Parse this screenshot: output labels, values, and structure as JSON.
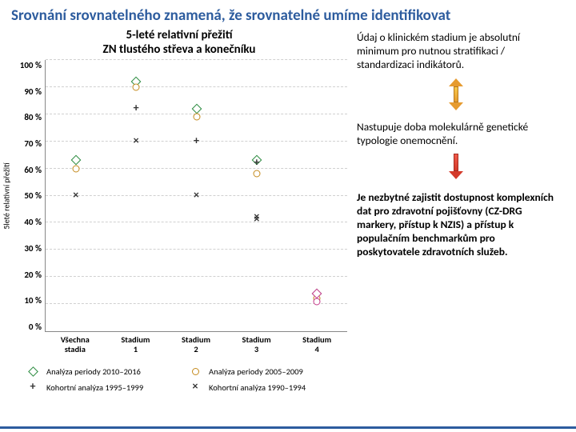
{
  "title_color": "#2d5c9e",
  "slide_title": "Srovnání srovnatelného znamená, že srovnatelné umíme identifikovat",
  "chart": {
    "title_line1": "5-leté relativní přežití",
    "title_line2": "ZN tlustého střeva a konečníku",
    "y_label": "5leté relativní přežití",
    "y_ticks": [
      "100 %",
      "90 %",
      "80 %",
      "70 %",
      "60 %",
      "50 %",
      "40 %",
      "30 %",
      "20 %",
      "10 %",
      "0 %"
    ],
    "y_min": 0,
    "y_max": 100,
    "x_categories": [
      {
        "l1": "Všechna",
        "l2": "stadia"
      },
      {
        "l1": "Stadium",
        "l2": "1"
      },
      {
        "l1": "Stadium",
        "l2": "2"
      },
      {
        "l1": "Stadium",
        "l2": "3"
      },
      {
        "l1": "Stadium",
        "l2": "4"
      }
    ],
    "series": [
      {
        "label": "Analýza periody 2010–2016",
        "marker": "diamond",
        "color": "#2a8a3e",
        "values": [
          63,
          92,
          82,
          63,
          14
        ]
      },
      {
        "label": "Analýza periody 2005–2009",
        "marker": "circle",
        "color": "#c48a1d",
        "values": [
          60,
          90,
          79,
          58,
          12
        ]
      },
      {
        "label": "Kohortní analýza 1995–1999",
        "marker": "plus",
        "color": "#333333",
        "values": null
      },
      {
        "label": "Kohortní analýza 1990–1994",
        "marker": "x",
        "color": "#333333",
        "values": null
      }
    ],
    "extra_series": [
      {
        "marker": "plus",
        "color": "#333333",
        "values": [
          null,
          82,
          70,
          62,
          null
        ]
      },
      {
        "marker": "x",
        "color": "#333333",
        "values": [
          50,
          70,
          50,
          41,
          null
        ]
      },
      {
        "marker": "x",
        "color": "#333333",
        "values": [
          null,
          null,
          null,
          42,
          null
        ]
      },
      {
        "marker": "diamond",
        "color": "#c43a8a",
        "values": [
          null,
          null,
          null,
          null,
          14
        ]
      },
      {
        "marker": "circle",
        "color": "#c43a8a",
        "values": [
          null,
          null,
          null,
          null,
          11
        ]
      }
    ],
    "grid_color": "#d0d0d0"
  },
  "right": {
    "p1": "Údaj o klinickém stadium je absolutní minimum pro nutnou stratifikaci / standardizaci indikátorů.",
    "p2": "Nastupuje doba molekulárně genetické typologie onemocnění.",
    "p3": "Je nezbytné zajistit dostupnost komplexních dat pro zdravotní pojišťovny (CZ-DRG markery, přístup k NZIS) a přístup k populačním benchmarkům pro poskytovatele zdravotních služeb."
  }
}
